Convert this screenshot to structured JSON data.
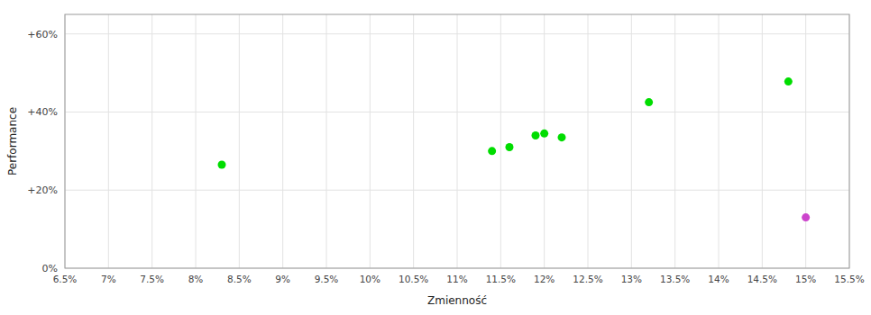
{
  "chart_data": {
    "type": "scatter",
    "xlabel": "Zmienność",
    "ylabel": "Performance",
    "xlim": [
      0.065,
      0.155
    ],
    "ylim": [
      0.0,
      0.65
    ],
    "xticks": [
      {
        "value": 0.065,
        "label": "6.5%"
      },
      {
        "value": 0.07,
        "label": "7%"
      },
      {
        "value": 0.075,
        "label": "7.5%"
      },
      {
        "value": 0.08,
        "label": "8%"
      },
      {
        "value": 0.085,
        "label": "8.5%"
      },
      {
        "value": 0.09,
        "label": "9%"
      },
      {
        "value": 0.095,
        "label": "9.5%"
      },
      {
        "value": 0.1,
        "label": "10%"
      },
      {
        "value": 0.105,
        "label": "10.5%"
      },
      {
        "value": 0.11,
        "label": "11%"
      },
      {
        "value": 0.115,
        "label": "11.5%"
      },
      {
        "value": 0.12,
        "label": "12%"
      },
      {
        "value": 0.125,
        "label": "12.5%"
      },
      {
        "value": 0.13,
        "label": "13%"
      },
      {
        "value": 0.135,
        "label": "13.5%"
      },
      {
        "value": 0.14,
        "label": "14%"
      },
      {
        "value": 0.145,
        "label": "14.5%"
      },
      {
        "value": 0.15,
        "label": "15%"
      },
      {
        "value": 0.155,
        "label": "15.5%"
      }
    ],
    "yticks": [
      {
        "value": 0.0,
        "label": "0%"
      },
      {
        "value": 0.2,
        "label": "+20%"
      },
      {
        "value": 0.4,
        "label": "+40%"
      },
      {
        "value": 0.6,
        "label": "+60%"
      }
    ],
    "grid": true,
    "series": [
      {
        "color": "#00dd00",
        "x": [
          0.083,
          0.114,
          0.116,
          0.119,
          0.12,
          0.122,
          0.132,
          0.148
        ],
        "values": [
          0.265,
          0.3,
          0.31,
          0.34,
          0.345,
          0.335,
          0.425,
          0.478
        ]
      },
      {
        "color": "#cc44cc",
        "x": [
          0.15
        ],
        "values": [
          0.13
        ]
      }
    ]
  }
}
